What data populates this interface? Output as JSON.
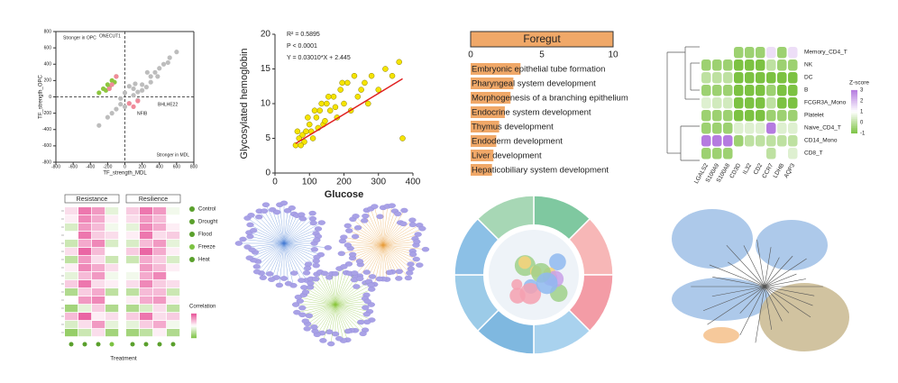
{
  "chart_data": [
    {
      "type": "scatter",
      "xlabel": "TF_strength_MDL",
      "ylabel": "TF_strength_OPC",
      "annotations": [
        "Stronger in OPC",
        "Stronger in MDL",
        "ONECUT1",
        "BHLHE22",
        "NFIB"
      ],
      "xlim": [
        -800,
        800
      ],
      "xticks": [
        -800,
        -600,
        -400,
        -200,
        0,
        200,
        400,
        600,
        800
      ],
      "ylim": [
        -800,
        800
      ],
      "yticks": [
        -800,
        -600,
        -400,
        -200,
        0,
        200,
        400,
        600,
        800
      ],
      "zero_lines": true,
      "series": [
        {
          "color": "#bdbdbd",
          "x": [
            -100,
            -50,
            0,
            50,
            100,
            150,
            200,
            -150,
            250,
            300,
            350,
            -200,
            0,
            100,
            200,
            400,
            500,
            600,
            -300,
            50,
            150,
            300,
            450,
            -50,
            120,
            260,
            380,
            520
          ],
          "y": [
            -150,
            -20,
            50,
            -80,
            100,
            60,
            150,
            -200,
            120,
            250,
            300,
            -250,
            -120,
            20,
            80,
            350,
            420,
            550,
            -350,
            130,
            -40,
            180,
            400,
            -90,
            160,
            300,
            250,
            480
          ]
        },
        {
          "color": "#8dc63f",
          "x": [
            -300,
            -250,
            -200,
            -150,
            -180,
            -100,
            -220,
            -120
          ],
          "y": [
            50,
            100,
            150,
            200,
            120,
            250,
            80,
            180
          ]
        },
        {
          "color": "#f08a9a",
          "x": [
            -150,
            -100,
            -180,
            50,
            100,
            150
          ],
          "y": [
            150,
            250,
            100,
            -80,
            -120,
            -50
          ]
        }
      ]
    },
    {
      "type": "scatter",
      "xlabel": "Glucose",
      "ylabel": "Glycosylated hemoglobin",
      "annotations": [
        "R² = 0.5895",
        "P < 0.0001",
        "Y = 0.03010*X + 2.445"
      ],
      "xlim": [
        0,
        400
      ],
      "xticks": [
        0,
        100,
        200,
        300,
        400
      ],
      "ylim": [
        0,
        20
      ],
      "yticks": [
        0,
        5,
        10,
        15,
        20
      ],
      "fit": {
        "slope": 0.0301,
        "intercept": 2.445,
        "color": "#e02020"
      },
      "series": [
        {
          "color": "#f5e400",
          "x": [
            60,
            70,
            80,
            90,
            100,
            110,
            120,
            130,
            140,
            150,
            160,
            170,
            180,
            190,
            200,
            210,
            220,
            230,
            240,
            250,
            260,
            280,
            300,
            320,
            340,
            360,
            370,
            85,
            95,
            105,
            115,
            125,
            135,
            145,
            155,
            65,
            75,
            175,
            195,
            270
          ],
          "y": [
            4,
            5,
            5.5,
            6,
            7,
            5,
            8,
            9,
            7,
            10,
            9,
            11,
            8,
            12,
            10,
            13,
            9,
            14,
            11,
            12,
            13,
            14,
            12,
            15,
            14,
            16,
            5,
            4.5,
            8,
            6,
            9,
            6.5,
            10,
            7.5,
            11,
            6,
            4,
            9.5,
            13,
            10
          ]
        }
      ]
    },
    {
      "type": "hbar",
      "title": "Foregut",
      "color": "#f0a868",
      "xlim": [
        0,
        10
      ],
      "xticks": [
        0,
        5,
        10
      ],
      "categories": [
        "Embryonic epithelial tube formation",
        "Pharyngeal system development",
        "Morphogenesis of a branching epithelium",
        "Endocrine system development",
        "Thymus development",
        "Endoderm development",
        "Liver development",
        "Hepaticobiliary system development"
      ],
      "values": [
        3.5,
        3.0,
        2.8,
        2.4,
        2.0,
        1.8,
        1.6,
        1.5
      ]
    },
    {
      "type": "heatmap",
      "colorbar_label": "Z-score",
      "zlim": [
        -1,
        3
      ],
      "colorbar_ticks": [
        -1,
        0,
        1,
        2,
        3
      ],
      "colorscale": [
        "#7cc242",
        "#ffffff",
        "#b57be0"
      ],
      "rows": [
        "Memory_CD4_T",
        "NK",
        "DC",
        "B",
        "FCGR3A_Mono",
        "Platelet",
        "Naive_CD4_T",
        "CD14_Mono",
        "CD8_T"
      ],
      "columns": [
        "LGALS2",
        "S100A9",
        "S100A8",
        "CD3D",
        "IL32",
        "CD2",
        "CCR7",
        "LDHB",
        "AQP3"
      ],
      "values": [
        [
          1,
          1,
          1,
          -0.5,
          -0.5,
          -0.5,
          1.5,
          -0.5,
          1.5
        ],
        [
          -0.5,
          -0.5,
          -0.5,
          -1,
          -1,
          -1,
          0,
          -0.5,
          -0.5
        ],
        [
          0,
          0,
          0,
          -1,
          -1,
          -1,
          -1,
          -1,
          -1
        ],
        [
          -0.5,
          -0.5,
          -0.5,
          -1,
          -1,
          -1,
          -0.5,
          -1,
          -1
        ],
        [
          0.5,
          0.3,
          0.3,
          -1,
          -1,
          -1,
          0,
          -1,
          -1
        ],
        [
          -0.5,
          -0.5,
          -0.5,
          -1,
          -1,
          -1,
          -0.5,
          -0.5,
          -0.5
        ],
        [
          -0.5,
          -0.5,
          -0.5,
          0.5,
          0.5,
          0.5,
          3,
          0.5,
          0.5
        ],
        [
          3,
          3,
          3,
          -0.5,
          0,
          0,
          0,
          0,
          0
        ],
        [
          -0.5,
          -0.5,
          -0.5,
          1,
          1,
          1,
          0,
          1,
          0.5
        ]
      ]
    },
    {
      "type": "heatmap",
      "column_groups": [
        "Resistance",
        "Resilience"
      ],
      "legend": [
        "Control",
        "Drought",
        "Flood",
        "Freeze",
        "Heat"
      ],
      "colorbar_label": "Correlation",
      "xlabel": "Treatment",
      "zlim": [
        -1,
        1
      ],
      "colorscale": [
        "#7cc242",
        "#ffffff",
        "#e8559a"
      ],
      "values": [
        [
          0.2,
          0.8,
          0.6,
          -0.2,
          0.3,
          0.8,
          0.6,
          -0.1
        ],
        [
          0.1,
          0.7,
          0.5,
          0.1,
          0.2,
          0.6,
          0.4,
          0.0
        ],
        [
          -0.3,
          0.6,
          0.4,
          -0.1,
          -0.2,
          0.7,
          0.5,
          0.1
        ],
        [
          0.0,
          0.8,
          0.3,
          0.2,
          0.1,
          0.8,
          0.2,
          0.3
        ],
        [
          -0.4,
          0.5,
          0.7,
          -0.3,
          -0.3,
          0.4,
          0.6,
          -0.2
        ],
        [
          0.2,
          0.9,
          0.4,
          0.0,
          0.3,
          0.9,
          0.5,
          0.1
        ],
        [
          -0.5,
          0.6,
          0.2,
          -0.4,
          -0.4,
          0.5,
          0.3,
          -0.3
        ],
        [
          0.1,
          0.7,
          0.5,
          0.2,
          0.0,
          0.6,
          0.4,
          0.1
        ],
        [
          -0.2,
          0.4,
          0.6,
          -0.1,
          -0.1,
          0.5,
          0.7,
          0.0
        ],
        [
          0.3,
          0.8,
          0.2,
          0.1,
          0.2,
          0.7,
          0.3,
          0.2
        ],
        [
          -0.6,
          0.3,
          0.5,
          -0.5,
          -0.5,
          0.4,
          0.4,
          -0.4
        ],
        [
          0.0,
          0.6,
          0.7,
          0.0,
          0.1,
          0.5,
          0.6,
          0.1
        ],
        [
          -0.7,
          -0.2,
          0.3,
          -0.6,
          -0.6,
          -0.3,
          0.2,
          -0.5
        ],
        [
          0.4,
          0.9,
          0.1,
          0.2,
          0.3,
          0.8,
          0.2,
          0.3
        ],
        [
          -0.3,
          0.2,
          0.6,
          -0.2,
          -0.2,
          0.3,
          0.5,
          -0.1
        ],
        [
          -0.8,
          -0.4,
          0.2,
          -0.7,
          -0.7,
          -0.5,
          0.1,
          -0.6
        ]
      ]
    }
  ]
}
